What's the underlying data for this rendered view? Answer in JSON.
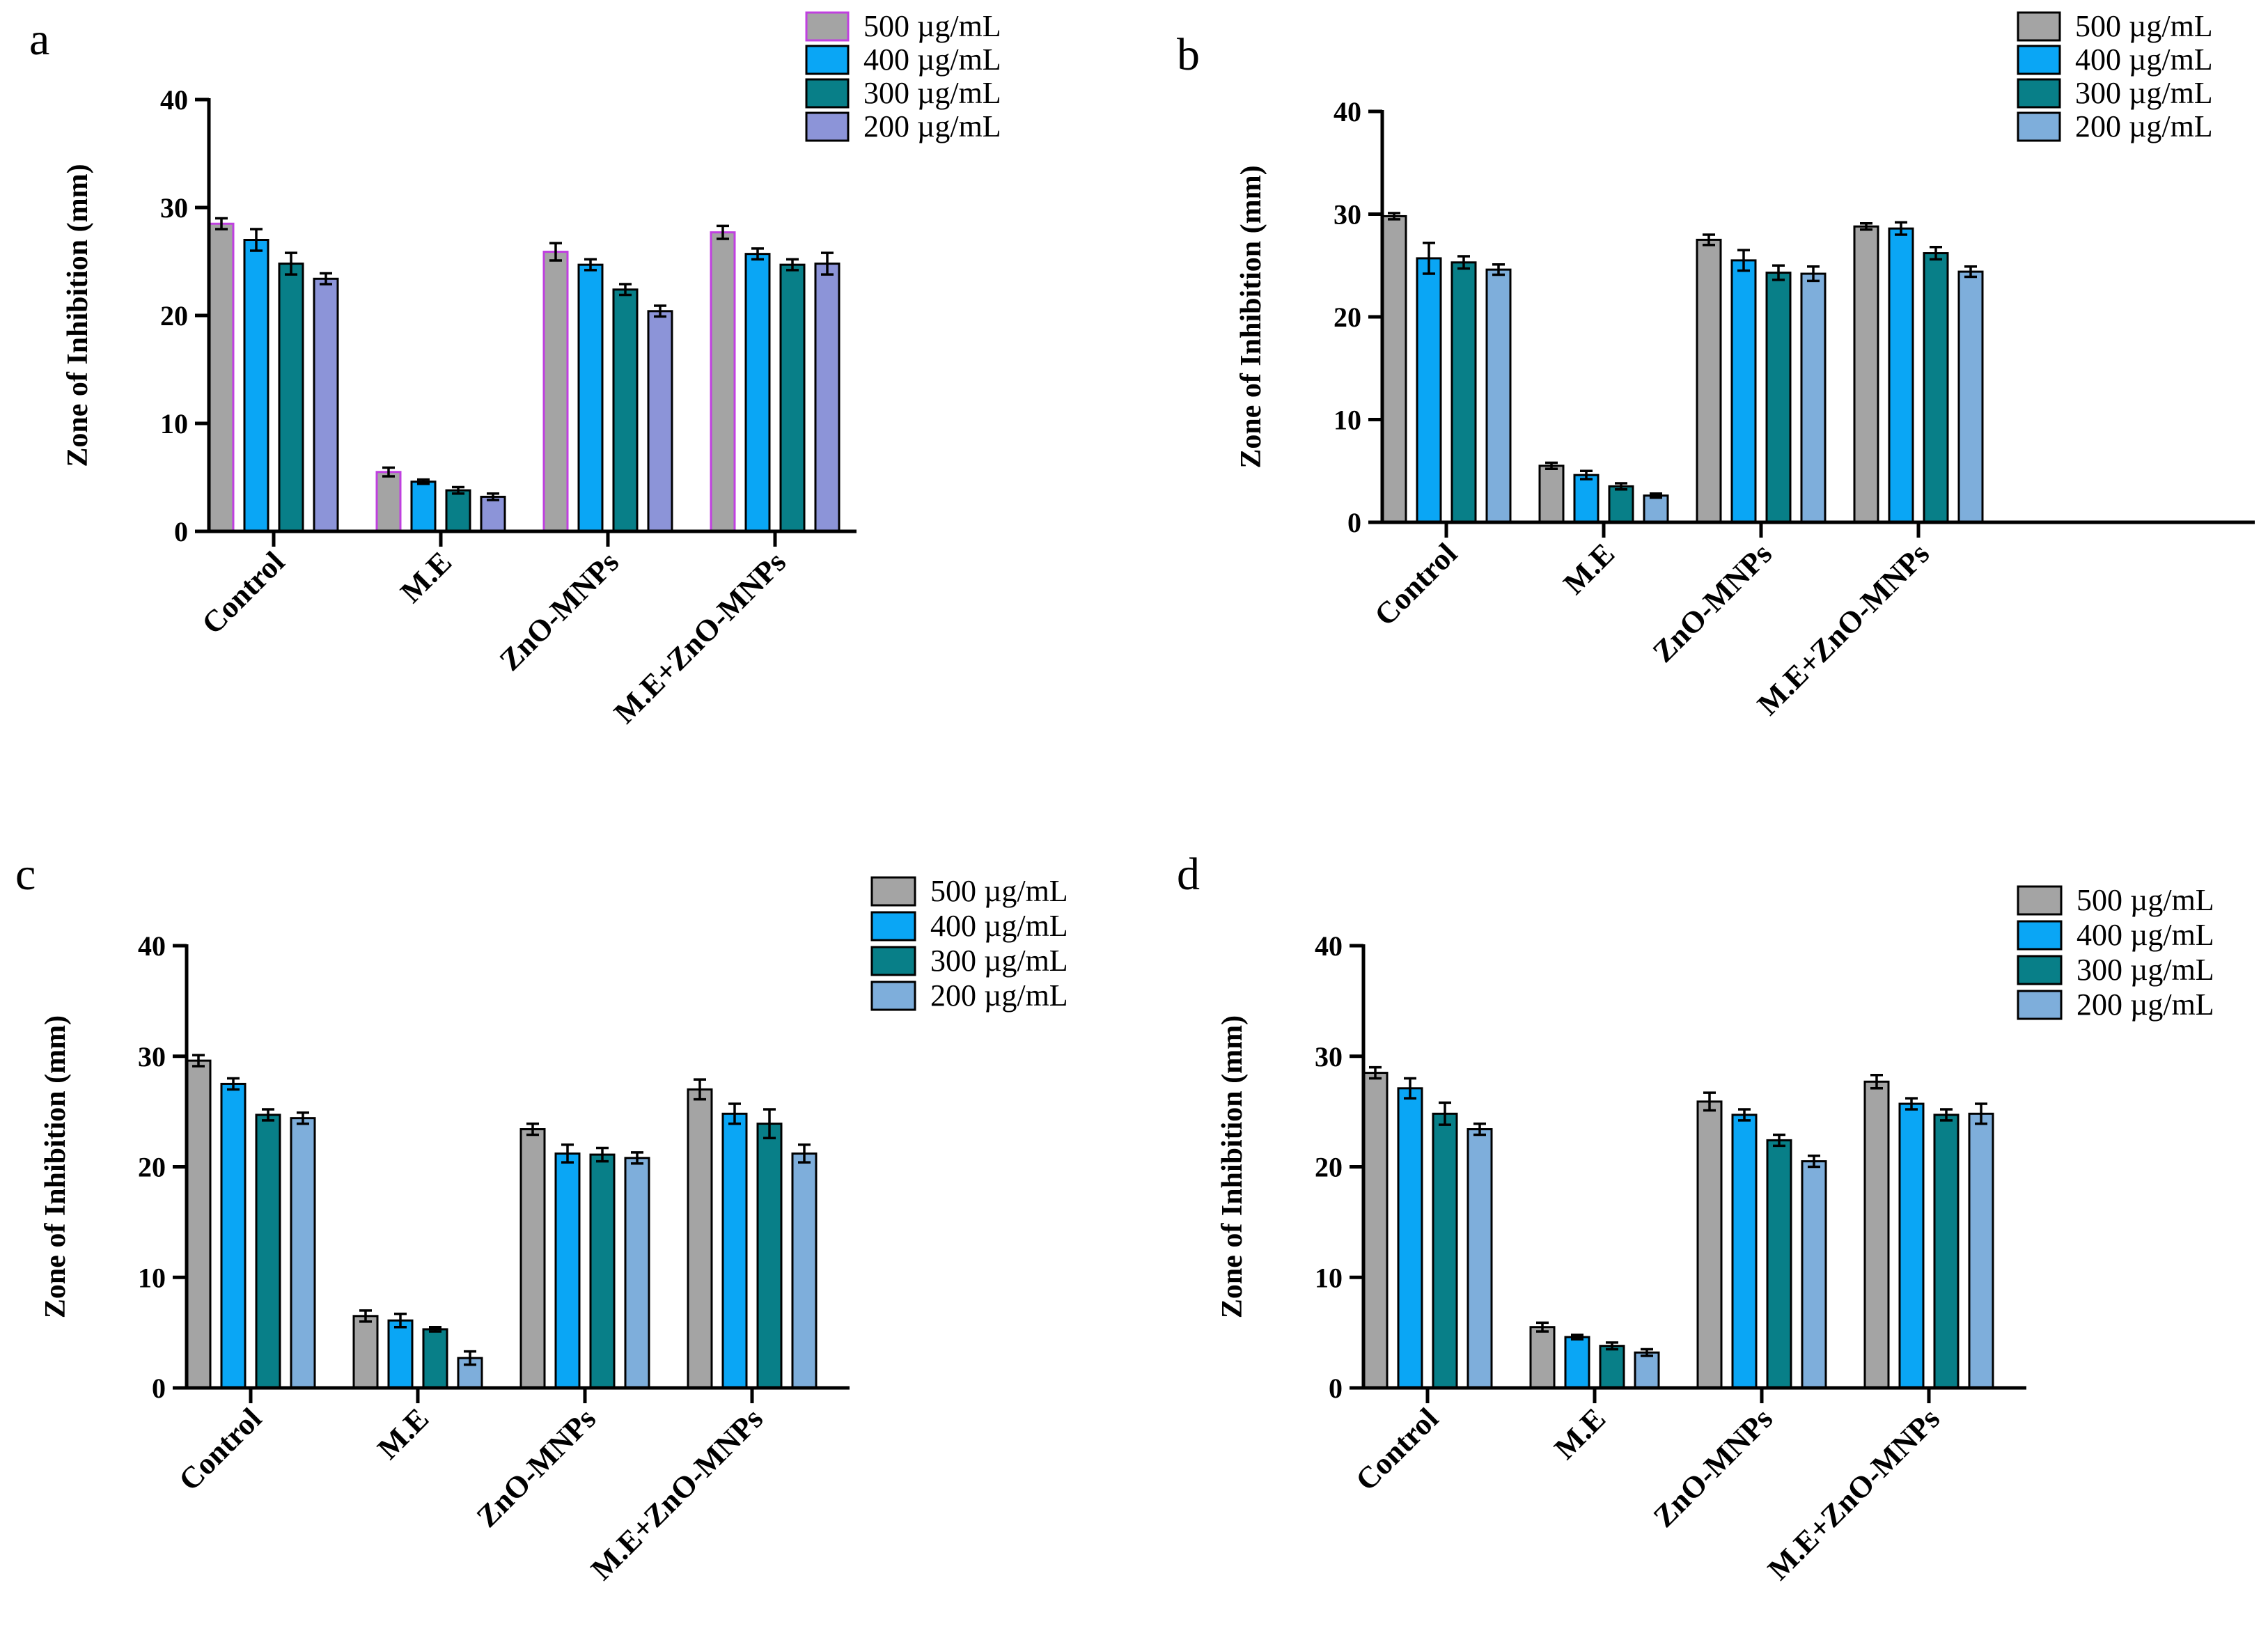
{
  "chart_data": [
    {
      "panel": "a",
      "type": "bar",
      "ylabel": "Zone of Inhibition (mm)",
      "ylim": [
        0,
        40
      ],
      "yticks": [
        "0",
        "10",
        "20",
        "30",
        "40"
      ],
      "categories": [
        "Control",
        "M.E",
        "ZnO-MNPs",
        "M.E+ZnO-MNPs"
      ],
      "series": [
        {
          "name": "500 µg/mL",
          "color": "#a4a4a4",
          "stroke": "#c040e0",
          "values": [
            28.5,
            5.5,
            25.9,
            27.7
          ],
          "errors": [
            0.5,
            0.4,
            0.8,
            0.6
          ]
        },
        {
          "name": "400 µg/mL",
          "color": "#0aa6f5",
          "stroke": "#000000",
          "values": [
            27.0,
            4.6,
            24.7,
            25.7
          ],
          "errors": [
            1.0,
            0.2,
            0.5,
            0.5
          ]
        },
        {
          "name": "300 µg/mL",
          "color": "#087f88",
          "stroke": "#000000",
          "values": [
            24.8,
            3.8,
            22.4,
            24.7
          ],
          "errors": [
            1.0,
            0.3,
            0.5,
            0.5
          ]
        },
        {
          "name": "200 µg/mL",
          "color": "#8c94d8",
          "stroke": "#000000",
          "values": [
            23.4,
            3.2,
            20.4,
            24.8
          ],
          "errors": [
            0.5,
            0.3,
            0.5,
            1.0
          ]
        }
      ]
    },
    {
      "panel": "b",
      "type": "bar",
      "ylabel": "Zone of Inhibition (mm)",
      "ylim": [
        0,
        40
      ],
      "yticks": [
        "0",
        "10",
        "20",
        "30",
        "40"
      ],
      "categories": [
        "Control",
        "M.E",
        "ZnO-MNPs",
        "M.E+ZnO-MNPs"
      ],
      "series": [
        {
          "name": "500 µg/mL",
          "color": "#a4a4a4",
          "stroke": "#000000",
          "values": [
            29.8,
            5.5,
            27.5,
            28.8
          ],
          "errors": [
            0.3,
            0.3,
            0.5,
            0.3
          ]
        },
        {
          "name": "400 µg/mL",
          "color": "#0aa6f5",
          "stroke": "#000000",
          "values": [
            25.7,
            4.6,
            25.5,
            28.6
          ],
          "errors": [
            1.5,
            0.4,
            1.0,
            0.6
          ]
        },
        {
          "name": "300 µg/mL",
          "color": "#087f88",
          "stroke": "#000000",
          "values": [
            25.3,
            3.5,
            24.3,
            26.2
          ],
          "errors": [
            0.6,
            0.3,
            0.7,
            0.6
          ]
        },
        {
          "name": "200 µg/mL",
          "color": "#7eaedb",
          "stroke": "#000000",
          "values": [
            24.6,
            2.6,
            24.2,
            24.4
          ],
          "errors": [
            0.5,
            0.2,
            0.7,
            0.5
          ]
        }
      ]
    },
    {
      "panel": "c",
      "type": "bar",
      "ylabel": "Zone of Inhibition (mm)",
      "ylim": [
        0,
        40
      ],
      "yticks": [
        "0",
        "10",
        "20",
        "30",
        "40"
      ],
      "categories": [
        "Control",
        "M.E",
        "ZnO-MNPs",
        "M.E+ZnO-MNPs"
      ],
      "series": [
        {
          "name": "500 µg/mL",
          "color": "#a4a4a4",
          "stroke": "#000000",
          "values": [
            29.6,
            6.5,
            23.4,
            27.0
          ],
          "errors": [
            0.5,
            0.5,
            0.5,
            0.9
          ]
        },
        {
          "name": "400 µg/mL",
          "color": "#0aa6f5",
          "stroke": "#000000",
          "values": [
            27.5,
            6.1,
            21.2,
            24.8
          ],
          "errors": [
            0.5,
            0.6,
            0.8,
            0.9
          ]
        },
        {
          "name": "300 µg/mL",
          "color": "#087f88",
          "stroke": "#000000",
          "values": [
            24.7,
            5.3,
            21.1,
            23.9
          ],
          "errors": [
            0.5,
            0.2,
            0.6,
            1.3
          ]
        },
        {
          "name": "200 µg/mL",
          "color": "#7eaedb",
          "stroke": "#000000",
          "values": [
            24.4,
            2.7,
            20.8,
            21.2
          ],
          "errors": [
            0.5,
            0.6,
            0.5,
            0.8
          ]
        }
      ]
    },
    {
      "panel": "d",
      "type": "bar",
      "ylabel": "Zone of Inhibition (mm)",
      "ylim": [
        0,
        40
      ],
      "yticks": [
        "0",
        "10",
        "20",
        "30",
        "40"
      ],
      "categories": [
        "Control",
        "M.E",
        "ZnO-MNPs",
        "M.E+ZnO-MNPs"
      ],
      "series": [
        {
          "name": "500 µg/mL",
          "color": "#a4a4a4",
          "stroke": "#000000",
          "values": [
            28.5,
            5.5,
            25.9,
            27.7
          ],
          "errors": [
            0.5,
            0.4,
            0.8,
            0.6
          ]
        },
        {
          "name": "400 µg/mL",
          "color": "#0aa6f5",
          "stroke": "#000000",
          "values": [
            27.1,
            4.6,
            24.7,
            25.7
          ],
          "errors": [
            0.9,
            0.2,
            0.5,
            0.5
          ]
        },
        {
          "name": "300 µg/mL",
          "color": "#087f88",
          "stroke": "#000000",
          "values": [
            24.8,
            3.8,
            22.4,
            24.7
          ],
          "errors": [
            1.0,
            0.3,
            0.5,
            0.5
          ]
        },
        {
          "name": "200 µg/mL",
          "color": "#7eaedb",
          "stroke": "#000000",
          "values": [
            23.4,
            3.2,
            20.5,
            24.8
          ],
          "errors": [
            0.5,
            0.3,
            0.5,
            0.9
          ]
        }
      ]
    }
  ]
}
